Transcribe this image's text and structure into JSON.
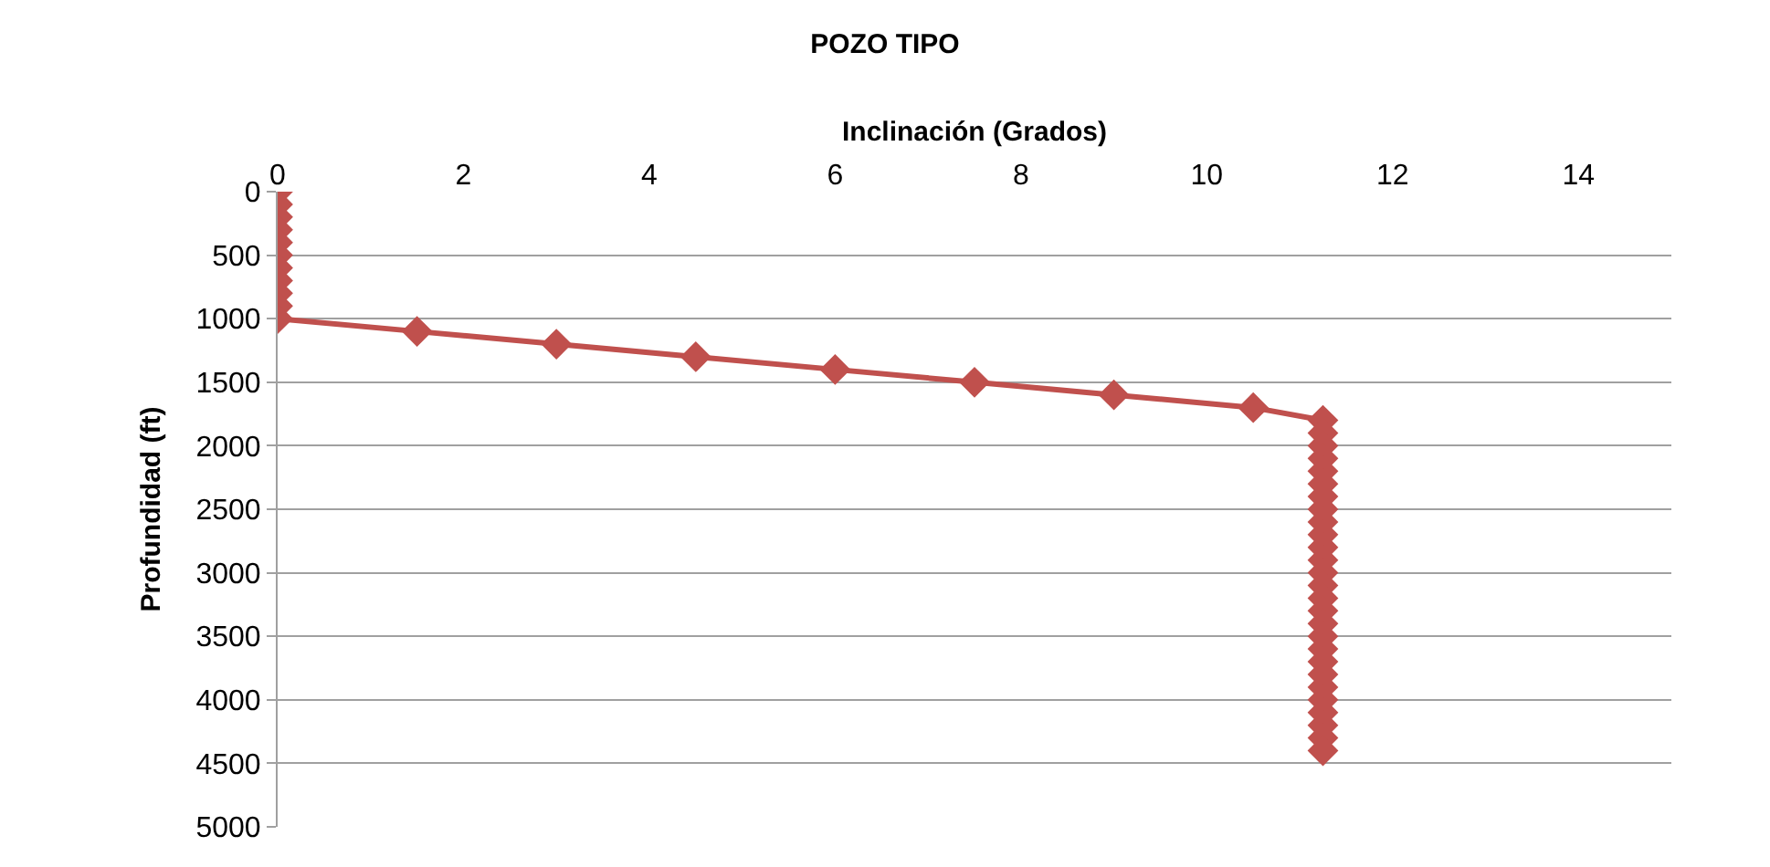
{
  "chart_data": {
    "type": "line",
    "title": "POZO TIPO",
    "xlabel": "Inclinación (Grados)",
    "ylabel": "Profundidad (ft)",
    "series": [
      {
        "color": "#c0504d",
        "x": [
          0,
          0,
          0,
          0,
          0,
          0,
          0,
          0,
          0,
          0,
          0,
          1.5,
          3,
          4.5,
          6,
          7.5,
          9,
          10.5,
          11.25,
          11.25,
          11.25,
          11.25,
          11.25,
          11.25,
          11.25,
          11.25,
          11.25,
          11.25,
          11.25,
          11.25,
          11.25,
          11.25,
          11.25,
          11.25,
          11.25,
          11.25,
          11.25,
          11.25,
          11.25,
          11.25,
          11.25,
          11.25,
          11.25,
          11.25,
          11.25
        ],
        "values": [
          0,
          100,
          200,
          300,
          400,
          500,
          600,
          700,
          800,
          900,
          1000,
          1100,
          1200,
          1300,
          1400,
          1500,
          1600,
          1700,
          1800,
          1900,
          2000,
          2100,
          2200,
          2300,
          2400,
          2500,
          2600,
          2700,
          2800,
          2900,
          3000,
          3100,
          3200,
          3300,
          3400,
          3500,
          3600,
          3700,
          3800,
          3900,
          4000,
          4100,
          4200,
          4300,
          4400
        ]
      }
    ],
    "xlim": [
      0,
      15
    ],
    "xticks": [
      0,
      2,
      4,
      6,
      8,
      10,
      12,
      14
    ],
    "ylim": [
      5000,
      0
    ],
    "yticks": [
      0,
      500,
      1000,
      1500,
      2000,
      2500,
      3000,
      3500,
      4000,
      4500,
      5000
    ],
    "grid": "y",
    "marker": "diamond",
    "line_style": "solid",
    "legend": false
  }
}
